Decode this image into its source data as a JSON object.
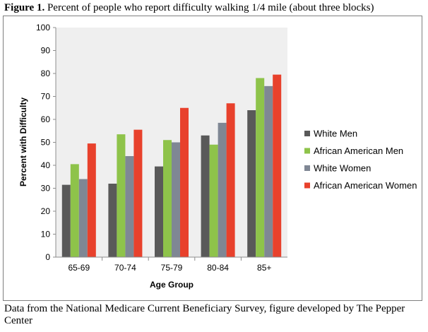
{
  "figure": {
    "label": "Figure 1.",
    "title": "Percent of people who report difficulty walking 1/4 mile (about three blocks)",
    "caption": "Data from the National Medicare Current Beneficiary Survey, figure developed by The Pepper Center"
  },
  "chart_data": {
    "type": "bar",
    "title": "",
    "xlabel": "Age Group",
    "ylabel": "Percent with Difficulty",
    "ylim": [
      0,
      100
    ],
    "yticks": [
      "0",
      "10",
      "20",
      "30",
      "40",
      "50",
      "60",
      "70",
      "80",
      "90",
      "100"
    ],
    "grid": false,
    "legend_position": "right",
    "categories": [
      "65-69",
      "70-74",
      "75-79",
      "80-84",
      "85+"
    ],
    "series": [
      {
        "name": "White Men",
        "color": "#595959",
        "values": [
          31.5,
          32,
          39.5,
          53,
          64
        ]
      },
      {
        "name": "African American Men",
        "color": "#8ec34a",
        "values": [
          40.5,
          53.5,
          51,
          49,
          78
        ]
      },
      {
        "name": "White Women",
        "color": "#7f8794",
        "values": [
          34,
          44,
          50,
          58.5,
          74.5
        ]
      },
      {
        "name": "African American Women",
        "color": "#e8412c",
        "values": [
          49.5,
          55.5,
          65,
          67,
          79.5
        ]
      }
    ]
  }
}
